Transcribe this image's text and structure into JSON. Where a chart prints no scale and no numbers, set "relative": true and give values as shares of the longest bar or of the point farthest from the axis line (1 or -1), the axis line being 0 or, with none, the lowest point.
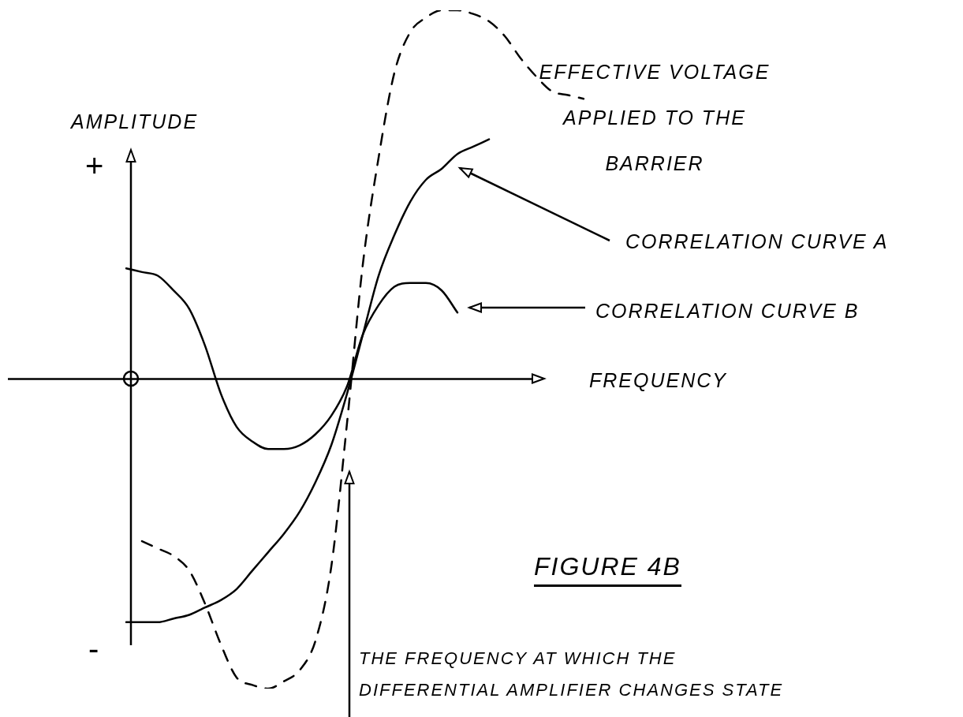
{
  "chart_data": {
    "type": "line",
    "title": "FIGURE 4B",
    "xlabel": "FREQUENCY",
    "ylabel": "AMPLITUDE",
    "relative": true,
    "legend": false,
    "marker": "none",
    "categories": [
      null,
      null,
      null,
      null,
      null,
      null,
      null,
      null,
      null,
      null,
      null,
      null,
      null,
      null,
      null,
      null,
      null,
      null,
      null,
      null,
      null,
      null,
      null,
      null,
      null,
      null,
      null,
      null,
      null,
      null
    ],
    "series": [
      {
        "name": "EFFECTIVE VOLTAGE APPLIED TO THE BARRIER",
        "color": "#000000",
        "line_style": "dashed",
        "values": [
          null,
          -0.44,
          -0.46,
          -0.48,
          -0.52,
          -0.61,
          -0.72,
          -0.81,
          -0.83,
          -0.84,
          -0.82,
          -0.79,
          -0.71,
          -0.51,
          -0.12,
          0.31,
          0.6,
          0.83,
          0.94,
          0.98,
          1.0,
          1.0,
          0.99,
          0.97,
          0.93,
          0.87,
          0.82,
          0.78,
          0.77,
          0.76
        ]
      },
      {
        "name": "CORRELATION CURVE A",
        "color": "#000000",
        "line_style": "solid",
        "values": [
          -0.66,
          -0.66,
          -0.66,
          -0.65,
          -0.64,
          -0.62,
          -0.6,
          -0.57,
          -0.52,
          -0.47,
          -0.42,
          -0.36,
          -0.28,
          -0.18,
          -0.04,
          0.12,
          0.28,
          0.39,
          0.48,
          0.54,
          0.57,
          0.61,
          0.63,
          0.65,
          null,
          null,
          null,
          null,
          null,
          null
        ]
      },
      {
        "name": "CORRELATION CURVE B",
        "color": "#000000",
        "line_style": "solid",
        "values": [
          0.3,
          0.29,
          0.28,
          0.24,
          0.19,
          0.09,
          -0.04,
          -0.13,
          -0.17,
          -0.19,
          -0.19,
          -0.18,
          -0.15,
          -0.1,
          -0.02,
          0.12,
          0.2,
          0.25,
          0.26,
          0.26,
          0.24,
          0.18,
          null,
          null,
          null,
          null,
          null,
          null,
          null,
          null
        ]
      }
    ],
    "annotations": [
      "+",
      "-",
      "THE FREQUENCY AT WHICH THE DIFFERENTIAL AMPLIFIER CHANGES STATE"
    ]
  }
}
